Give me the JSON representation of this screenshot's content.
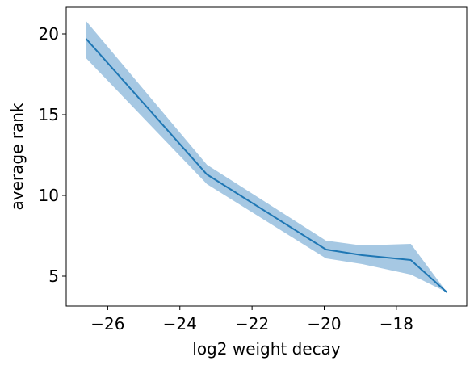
{
  "chart_data": {
    "type": "line",
    "xlabel": "log2 weight decay",
    "ylabel": "average rank",
    "xlim": [
      -27.15,
      -16.05
    ],
    "ylim": [
      3.15,
      21.65
    ],
    "grid": false,
    "x_ticks": [
      -26,
      -24,
      -22,
      -20,
      -18
    ],
    "x_tick_labels": [
      "−26",
      "−24",
      "−22",
      "−20",
      "−18"
    ],
    "y_ticks": [
      5,
      10,
      15,
      20
    ],
    "y_tick_labels": [
      "5",
      "10",
      "15",
      "20"
    ],
    "series": [
      {
        "x": [
          -26.6,
          -23.25,
          -19.95,
          -18.95,
          -17.6,
          -16.6
        ],
        "y": [
          19.7,
          11.3,
          6.65,
          6.3,
          6.0,
          4.0
        ],
        "lower": [
          18.5,
          10.7,
          6.1,
          5.75,
          5.1,
          4.0
        ],
        "upper": [
          20.8,
          11.9,
          7.2,
          6.9,
          7.0,
          4.0
        ],
        "color": "#1f77b4",
        "band_color": "#a6c8e3"
      }
    ]
  }
}
